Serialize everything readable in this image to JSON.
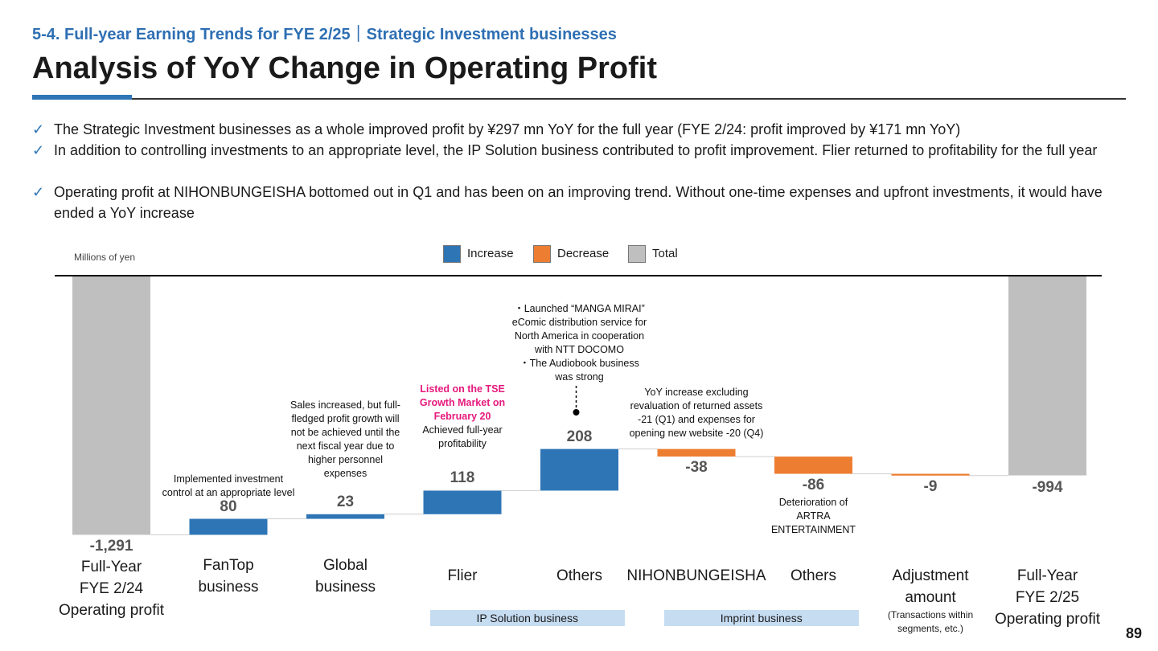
{
  "header": {
    "subtitle": "5-4. Full-year Earning Trends for FYE 2/25｜Strategic Investment businesses",
    "title": "Analysis of YoY Change in Operating Profit"
  },
  "bullets": [
    "The Strategic Investment businesses as a whole improved profit by ¥297 mn YoY for the full year (FYE 2/24: profit improved by ¥171 mn YoY)",
    "In addition to controlling investments to an appropriate level, the IP Solution business contributed to profit improvement. Flier returned to profitability for the full year",
    "Operating profit at NIHONBUNGEISHA bottomed out in Q1 and has been on an improving trend. Without one-time expenses and upfront investments, it would have ended a YoY increase"
  ],
  "check_icon": "✓",
  "chart_data": {
    "type": "waterfall",
    "unit_label": "Millions of yen",
    "legend": [
      {
        "label": "Increase",
        "color": "#2e75b6"
      },
      {
        "label": "Decrease",
        "color": "#ed7d31"
      },
      {
        "label": "Total",
        "color": "#bfbfbf"
      }
    ],
    "legend_placement": "top-center",
    "ylim": [
      -1320,
      0
    ],
    "steps": [
      {
        "category": [
          "Full-Year",
          "FYE 2/24",
          "Operating profit"
        ],
        "value": -1291,
        "kind": "total",
        "label": "-1,291"
      },
      {
        "category": [
          "FanTop",
          "business"
        ],
        "value": 80,
        "kind": "increase",
        "label": "80"
      },
      {
        "category": [
          "Global",
          "business"
        ],
        "value": 23,
        "kind": "increase",
        "label": "23"
      },
      {
        "category": [
          "Flier"
        ],
        "value": 118,
        "kind": "increase",
        "label": "118"
      },
      {
        "category": [
          "Others"
        ],
        "value": 208,
        "kind": "increase",
        "label": "208"
      },
      {
        "category": [
          "NIHONBUNGEISHA"
        ],
        "value": -38,
        "kind": "decrease",
        "label": "-38"
      },
      {
        "category": [
          "Others"
        ],
        "value": -86,
        "kind": "decrease",
        "label": "-86"
      },
      {
        "category": [
          "Adjustment",
          "amount"
        ],
        "category_note": [
          "(Transactions within",
          "segments, etc.)"
        ],
        "value": -9,
        "kind": "decrease",
        "label": "-9"
      },
      {
        "category": [
          "Full-Year",
          "FYE 2/25",
          "Operating profit"
        ],
        "value": -994,
        "kind": "total",
        "label": "-994"
      }
    ],
    "groups": [
      {
        "label": "IP Solution business",
        "from_step": 3,
        "to_step": 4
      },
      {
        "label": "Imprint business",
        "from_step": 5,
        "to_step": 6
      }
    ],
    "annotations": [
      {
        "step": 1,
        "lines": [
          "Implemented investment",
          "control at an appropriate level"
        ]
      },
      {
        "step": 2,
        "lines": [
          "Sales increased, but full-",
          "fledged profit growth will",
          "not be achieved until the",
          "next fiscal year due to",
          "higher personnel",
          "expenses"
        ]
      },
      {
        "step": 3,
        "highlight_lines": [
          "Listed on the TSE",
          "Growth Market on",
          "February 20"
        ],
        "lines": [
          "Achieved full-year",
          "profitability"
        ]
      },
      {
        "step": 4,
        "lines": [
          "・Launched “MANGA MIRAI”",
          "eComic distribution service for",
          "North America in cooperation",
          "with NTT DOCOMO",
          "・The Audiobook business",
          "was strong"
        ]
      },
      {
        "step": 5,
        "lines": [
          "YoY increase excluding",
          "revaluation of returned assets",
          "-21 (Q1) and expenses for",
          "opening new website -20 (Q4)"
        ]
      },
      {
        "step": 6,
        "lines": [
          "Deterioration of",
          "ARTRA",
          "ENTERTAINMENT"
        ]
      }
    ]
  },
  "page_number": "89"
}
